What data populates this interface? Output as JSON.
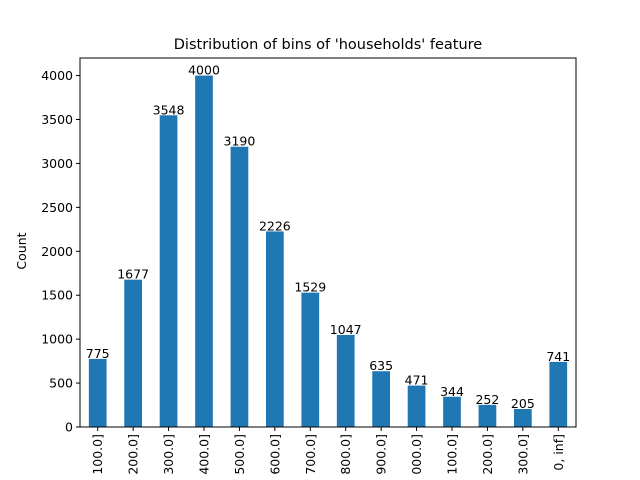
{
  "chart_data": {
    "type": "bar",
    "title": "Distribution of bins of 'households' feature",
    "xlabel": "",
    "ylabel": "Count",
    "categories": [
      "100.0]",
      "200.0]",
      "300.0]",
      "400.0]",
      "500.0]",
      "600.0]",
      "700.0]",
      "800.0]",
      "900.0]",
      "000.0]",
      "100.0]",
      "200.0]",
      "300.0]",
      "0, inf]"
    ],
    "values": [
      775,
      1677,
      3548,
      4000,
      3190,
      2226,
      1529,
      1047,
      635,
      471,
      344,
      252,
      205,
      741
    ],
    "data_labels": [
      "775",
      "1677",
      "3548",
      "4000",
      "3190",
      "2226",
      "1529",
      "1047",
      "635",
      "471",
      "344",
      "252",
      "205",
      "741"
    ],
    "ylim": [
      0,
      4200
    ],
    "yticks": [
      0,
      500,
      1000,
      1500,
      2000,
      2500,
      3000,
      3500,
      4000
    ],
    "grid": false,
    "legend": "none",
    "bar_color": "#1f77b4"
  }
}
